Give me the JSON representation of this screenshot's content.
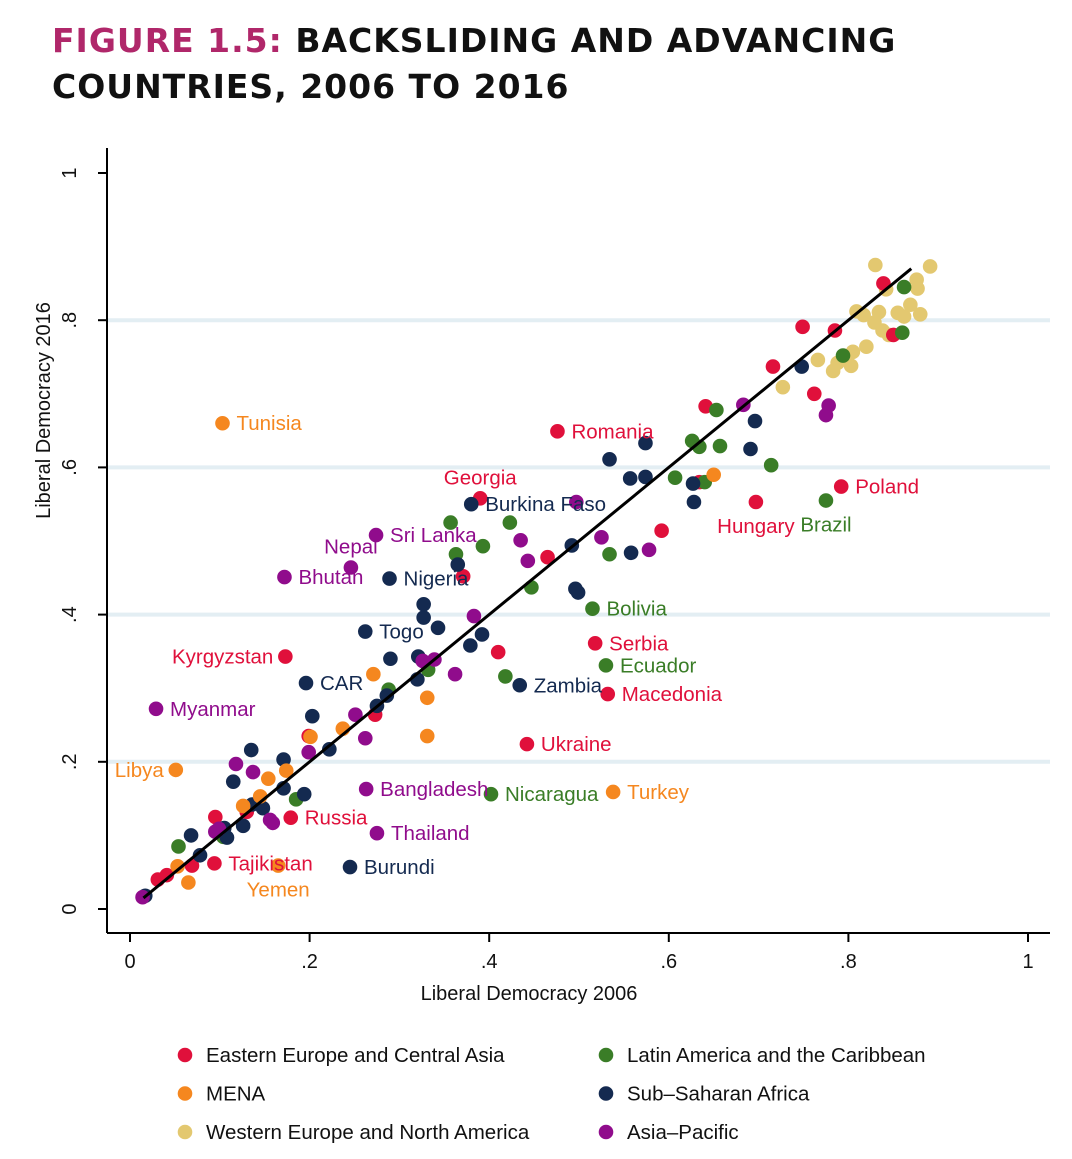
{
  "figure": {
    "number": "FIGURE 1.5:",
    "title_line1": "BACKSLIDING AND ADVANCING",
    "title_line2": "COUNTRIES, 2006 TO 2016"
  },
  "chart_data": {
    "type": "scatter",
    "xlabel": "Liberal Democracy 2006",
    "ylabel": "Liberal Democracy 2016",
    "xlim": [
      0,
      1
    ],
    "ylim": [
      0,
      1
    ],
    "xticks": [
      {
        "v": 0,
        "label": "0"
      },
      {
        "v": 0.2,
        "label": ".2"
      },
      {
        "v": 0.4,
        "label": ".4"
      },
      {
        "v": 0.6,
        "label": ".6"
      },
      {
        "v": 0.8,
        "label": ".8"
      },
      {
        "v": 1,
        "label": "1"
      }
    ],
    "yticks": [
      {
        "v": 0,
        "label": "0"
      },
      {
        "v": 0.2,
        "label": ".2"
      },
      {
        "v": 0.4,
        "label": ".4"
      },
      {
        "v": 0.6,
        "label": ".6"
      },
      {
        "v": 0.8,
        "label": ".8"
      },
      {
        "v": 1,
        "label": "1"
      }
    ],
    "grid": "horizontal",
    "fit_line": {
      "x": [
        0.015,
        0.87
      ],
      "y": [
        0.015,
        0.87
      ]
    },
    "colors": {
      "EECA": "#e0103b",
      "MENA": "#f5871f",
      "WENA": "#e3c870",
      "LAC": "#3a7d27",
      "SSA": "#142a50",
      "AP": "#900c8c"
    },
    "legend": [
      {
        "key": "EECA",
        "label": "Eastern Europe and Central Asia"
      },
      {
        "key": "LAC",
        "label": "Latin America and the Caribbean"
      },
      {
        "key": "MENA",
        "label": "MENA"
      },
      {
        "key": "SSA",
        "label": "Sub–Saharan Africa"
      },
      {
        "key": "WENA",
        "label": "Western Europe and North America"
      },
      {
        "key": "AP",
        "label": "Asia–Pacific"
      }
    ],
    "labeled_points": [
      {
        "label": "Tunisia",
        "region": "MENA",
        "x": 0.103,
        "y": 0.66
      },
      {
        "label": "Romania",
        "region": "EECA",
        "x": 0.476,
        "y": 0.649
      },
      {
        "label": "Georgia",
        "region": "EECA",
        "x": 0.39,
        "y": 0.558,
        "anchor": "above"
      },
      {
        "label": "Burkina Faso",
        "region": "SSA",
        "x": 0.38,
        "y": 0.55
      },
      {
        "label": "Poland",
        "region": "EECA",
        "x": 0.792,
        "y": 0.574
      },
      {
        "label": "Hungary",
        "region": "EECA",
        "x": 0.697,
        "y": 0.553,
        "anchor": "below"
      },
      {
        "label": "Brazil",
        "region": "LAC",
        "x": 0.775,
        "y": 0.555,
        "anchor": "below"
      },
      {
        "label": "Sri Lanka",
        "region": "AP",
        "x": 0.274,
        "y": 0.508
      },
      {
        "label": "Nepal",
        "region": "AP",
        "x": 0.246,
        "y": 0.464,
        "anchor": "above"
      },
      {
        "label": "Bhutan",
        "region": "AP",
        "x": 0.172,
        "y": 0.451
      },
      {
        "label": "Nigeria",
        "region": "SSA",
        "x": 0.289,
        "y": 0.449
      },
      {
        "label": "Bolivia",
        "region": "LAC",
        "x": 0.515,
        "y": 0.408
      },
      {
        "label": "Togo",
        "region": "SSA",
        "x": 0.262,
        "y": 0.377
      },
      {
        "label": "Serbia",
        "region": "EECA",
        "x": 0.518,
        "y": 0.361
      },
      {
        "label": "Kyrgyzstan",
        "region": "EECA",
        "x": 0.173,
        "y": 0.343,
        "anchor": "left"
      },
      {
        "label": "Ecuador",
        "region": "LAC",
        "x": 0.53,
        "y": 0.331
      },
      {
        "label": "CAR",
        "region": "SSA",
        "x": 0.196,
        "y": 0.307
      },
      {
        "label": "Zambia",
        "region": "SSA",
        "x": 0.434,
        "y": 0.304
      },
      {
        "label": "Macedonia",
        "region": "EECA",
        "x": 0.532,
        "y": 0.292
      },
      {
        "label": "Myanmar",
        "region": "AP",
        "x": 0.029,
        "y": 0.272
      },
      {
        "label": "Ukraine",
        "region": "EECA",
        "x": 0.442,
        "y": 0.224
      },
      {
        "label": "Libya",
        "region": "MENA",
        "x": 0.051,
        "y": 0.189,
        "anchor": "left"
      },
      {
        "label": "Bangladesh",
        "region": "AP",
        "x": 0.263,
        "y": 0.163
      },
      {
        "label": "Nicaragua",
        "region": "LAC",
        "x": 0.402,
        "y": 0.156
      },
      {
        "label": "Turkey",
        "region": "MENA",
        "x": 0.538,
        "y": 0.159
      },
      {
        "label": "Russia",
        "region": "EECA",
        "x": 0.179,
        "y": 0.124
      },
      {
        "label": "Thailand",
        "region": "AP",
        "x": 0.275,
        "y": 0.103
      },
      {
        "label": "Tajikistan",
        "region": "EECA",
        "x": 0.094,
        "y": 0.062
      },
      {
        "label": "Burundi",
        "region": "SSA",
        "x": 0.245,
        "y": 0.057
      },
      {
        "label": "Yemen",
        "region": "MENA",
        "x": 0.165,
        "y": 0.059,
        "anchor": "below"
      }
    ],
    "points": {
      "WENA": [
        [
          0.83,
          0.875
        ],
        [
          0.891,
          0.873
        ],
        [
          0.876,
          0.855
        ],
        [
          0.842,
          0.842
        ],
        [
          0.877,
          0.843
        ],
        [
          0.809,
          0.812
        ],
        [
          0.834,
          0.811
        ],
        [
          0.829,
          0.797
        ],
        [
          0.855,
          0.81
        ],
        [
          0.817,
          0.807
        ],
        [
          0.88,
          0.808
        ],
        [
          0.862,
          0.805
        ],
        [
          0.838,
          0.786
        ],
        [
          0.845,
          0.78
        ],
        [
          0.82,
          0.764
        ],
        [
          0.805,
          0.757
        ],
        [
          0.766,
          0.746
        ],
        [
          0.788,
          0.742
        ],
        [
          0.803,
          0.738
        ],
        [
          0.783,
          0.731
        ],
        [
          0.727,
          0.709
        ],
        [
          0.869,
          0.821
        ]
      ],
      "EECA": [
        [
          0.839,
          0.85
        ],
        [
          0.749,
          0.791
        ],
        [
          0.785,
          0.786
        ],
        [
          0.85,
          0.78
        ],
        [
          0.716,
          0.737
        ],
        [
          0.762,
          0.7
        ],
        [
          0.641,
          0.683
        ],
        [
          0.592,
          0.514
        ],
        [
          0.465,
          0.478
        ],
        [
          0.371,
          0.452
        ],
        [
          0.41,
          0.349
        ],
        [
          0.273,
          0.264
        ],
        [
          0.199,
          0.235
        ],
        [
          0.13,
          0.132
        ],
        [
          0.095,
          0.125
        ],
        [
          0.031,
          0.04
        ],
        [
          0.041,
          0.046
        ],
        [
          0.069,
          0.059
        ],
        [
          0.634,
          0.58
        ]
      ],
      "LAC": [
        [
          0.862,
          0.845
        ],
        [
          0.86,
          0.783
        ],
        [
          0.794,
          0.752
        ],
        [
          0.653,
          0.678
        ],
        [
          0.626,
          0.636
        ],
        [
          0.634,
          0.628
        ],
        [
          0.657,
          0.629
        ],
        [
          0.714,
          0.603
        ],
        [
          0.607,
          0.586
        ],
        [
          0.64,
          0.58
        ],
        [
          0.357,
          0.525
        ],
        [
          0.423,
          0.525
        ],
        [
          0.393,
          0.493
        ],
        [
          0.363,
          0.482
        ],
        [
          0.534,
          0.482
        ],
        [
          0.447,
          0.437
        ],
        [
          0.418,
          0.316
        ],
        [
          0.332,
          0.325
        ],
        [
          0.288,
          0.298
        ],
        [
          0.185,
          0.149
        ],
        [
          0.054,
          0.085
        ],
        [
          0.104,
          0.098
        ]
      ],
      "SSA": [
        [
          0.748,
          0.737
        ],
        [
          0.696,
          0.663
        ],
        [
          0.574,
          0.633
        ],
        [
          0.534,
          0.611
        ],
        [
          0.557,
          0.585
        ],
        [
          0.574,
          0.587
        ],
        [
          0.691,
          0.625
        ],
        [
          0.627,
          0.578
        ],
        [
          0.628,
          0.553
        ],
        [
          0.492,
          0.494
        ],
        [
          0.558,
          0.484
        ],
        [
          0.365,
          0.468
        ],
        [
          0.496,
          0.435
        ],
        [
          0.499,
          0.43
        ],
        [
          0.327,
          0.414
        ],
        [
          0.327,
          0.396
        ],
        [
          0.343,
          0.382
        ],
        [
          0.392,
          0.373
        ],
        [
          0.379,
          0.358
        ],
        [
          0.29,
          0.34
        ],
        [
          0.321,
          0.343
        ],
        [
          0.32,
          0.312
        ],
        [
          0.286,
          0.29
        ],
        [
          0.275,
          0.276
        ],
        [
          0.203,
          0.262
        ],
        [
          0.222,
          0.217
        ],
        [
          0.135,
          0.216
        ],
        [
          0.171,
          0.203
        ],
        [
          0.115,
          0.173
        ],
        [
          0.171,
          0.164
        ],
        [
          0.194,
          0.156
        ],
        [
          0.148,
          0.137
        ],
        [
          0.136,
          0.142
        ],
        [
          0.126,
          0.113
        ],
        [
          0.105,
          0.11
        ],
        [
          0.108,
          0.097
        ],
        [
          0.078,
          0.073
        ],
        [
          0.068,
          0.1
        ],
        [
          0.017,
          0.018
        ]
      ],
      "MENA": [
        [
          0.65,
          0.59
        ],
        [
          0.271,
          0.319
        ],
        [
          0.331,
          0.287
        ],
        [
          0.237,
          0.245
        ],
        [
          0.201,
          0.234
        ],
        [
          0.331,
          0.235
        ],
        [
          0.174,
          0.188
        ],
        [
          0.154,
          0.177
        ],
        [
          0.145,
          0.153
        ],
        [
          0.126,
          0.14
        ],
        [
          0.053,
          0.058
        ],
        [
          0.065,
          0.036
        ]
      ],
      "AP": [
        [
          0.683,
          0.685
        ],
        [
          0.778,
          0.684
        ],
        [
          0.775,
          0.671
        ],
        [
          0.497,
          0.553
        ],
        [
          0.525,
          0.505
        ],
        [
          0.578,
          0.488
        ],
        [
          0.435,
          0.501
        ],
        [
          0.443,
          0.473
        ],
        [
          0.383,
          0.398
        ],
        [
          0.326,
          0.337
        ],
        [
          0.339,
          0.339
        ],
        [
          0.362,
          0.319
        ],
        [
          0.251,
          0.264
        ],
        [
          0.262,
          0.232
        ],
        [
          0.199,
          0.213
        ],
        [
          0.118,
          0.197
        ],
        [
          0.137,
          0.186
        ],
        [
          0.156,
          0.121
        ],
        [
          0.159,
          0.117
        ],
        [
          0.095,
          0.105
        ],
        [
          0.099,
          0.109
        ],
        [
          0.014,
          0.016
        ]
      ]
    }
  }
}
